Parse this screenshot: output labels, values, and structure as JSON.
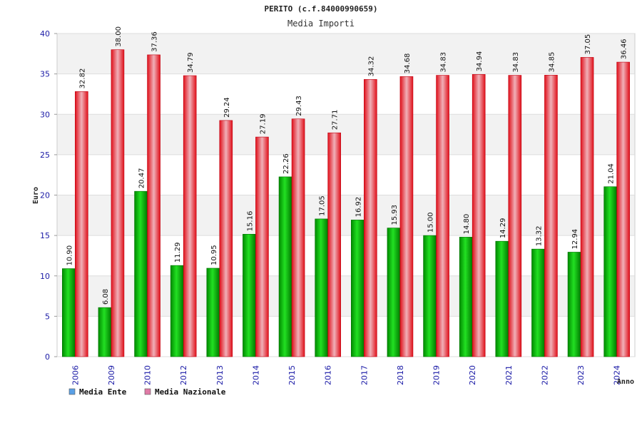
{
  "chart_data": {
    "type": "bar",
    "title": "PERITO (c.f.84000990659)",
    "subtitle": "Media Importi",
    "ylabel": "Euro",
    "xlabel": "Anno",
    "ylim": [
      0,
      40
    ],
    "yticks": [
      0,
      5,
      10,
      15,
      20,
      25,
      30,
      35,
      40
    ],
    "categories": [
      "2006",
      "2009",
      "2010",
      "2012",
      "2013",
      "2014",
      "2015",
      "2016",
      "2017",
      "2018",
      "2019",
      "2020",
      "2021",
      "2022",
      "2023",
      "2024"
    ],
    "series": [
      {
        "name": "Media Ente",
        "color": "#00b000",
        "values": [
          10.9,
          6.08,
          20.47,
          11.29,
          10.95,
          15.16,
          22.26,
          17.05,
          16.92,
          15.93,
          15.0,
          14.8,
          14.29,
          13.32,
          12.94,
          21.04
        ],
        "labels": [
          "10.90",
          "6.08",
          "20.47",
          "11.29",
          "10.95",
          "15.16",
          "22.26",
          "17.05",
          "16.92",
          "15.93",
          "15.00",
          "14.80",
          "14.29",
          "13.32",
          "12.94",
          "21.04"
        ]
      },
      {
        "name": "Media Nazionale",
        "color": "#ee1c25",
        "values": [
          32.82,
          38.0,
          37.36,
          34.79,
          29.24,
          27.19,
          29.43,
          27.71,
          34.32,
          34.68,
          34.83,
          34.94,
          34.83,
          34.85,
          37.05,
          36.46
        ],
        "labels": [
          "32.82",
          "38.00",
          "37.36",
          "34.79",
          "29.24",
          "27.19",
          "29.43",
          "27.71",
          "34.32",
          "34.68",
          "34.83",
          "34.94",
          "34.83",
          "34.85",
          "37.05",
          "36.46"
        ]
      }
    ],
    "legend": {
      "placement": "bottom-left",
      "items": [
        {
          "label": "Media Ente",
          "color": "#5aa0e6"
        },
        {
          "label": "Media Nazionale",
          "color": "#e07aa6"
        }
      ]
    }
  }
}
